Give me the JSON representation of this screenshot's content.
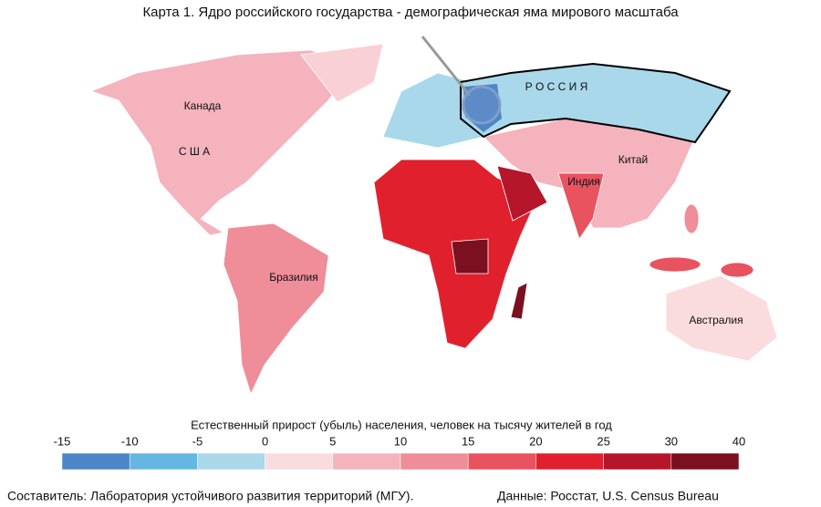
{
  "title": "Карта 1. Ядро российского государства - демографическая яма мирового масштаба",
  "labels": [
    "Канада",
    "С Ш А",
    "Бразилия",
    "Р О С С И Я",
    "Китай",
    "Индия",
    "Австралия"
  ],
  "legend": {
    "title": "Естественный прирост (убыль) населения, человек на тысячу жителей в год",
    "ticks": [
      -15,
      -10,
      -5,
      0,
      5,
      10,
      15,
      20,
      25,
      30,
      40
    ],
    "colors": [
      "#4d86c6",
      "#63b7e0",
      "#a9d8ea",
      "#fbdcde",
      "#f4b3bd",
      "#ef8d98",
      "#e9525f",
      "#e1202e",
      "#b5162a",
      "#7a1020"
    ]
  },
  "footer": {
    "author": "Составитель: Лаборатория устойчивого развития территорий (МГУ).",
    "source": "Данные: Росстат, U.S. Census Bureau"
  }
}
